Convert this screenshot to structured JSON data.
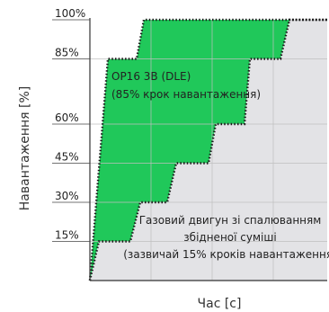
{
  "chart_data": {
    "type": "area",
    "xlabel": "Час [с]",
    "ylabel": "Навантаження [%]",
    "yticks": [
      "15%",
      "30%",
      "45%",
      "60%",
      "85%",
      "100%"
    ],
    "ylim": [
      0,
      100
    ],
    "grid": true,
    "series": [
      {
        "name": "OP16 3B (DLE)",
        "step_levels": [
          0,
          85,
          100
        ],
        "annotation": [
          "OP16 3B (DLE)",
          "(85% крок навантаження)"
        ],
        "color": "#20c85a"
      },
      {
        "name": "Газовий двигун зі спалюванням збідненої суміші",
        "step_levels": [
          0,
          15,
          30,
          45,
          60,
          85,
          100
        ],
        "annotation": [
          "Газовий двигун зі спалюванням",
          "збідненої суміші",
          "(зазвичай 15% кроків навантаження)"
        ],
        "color": "#e3e3e6"
      }
    ]
  }
}
